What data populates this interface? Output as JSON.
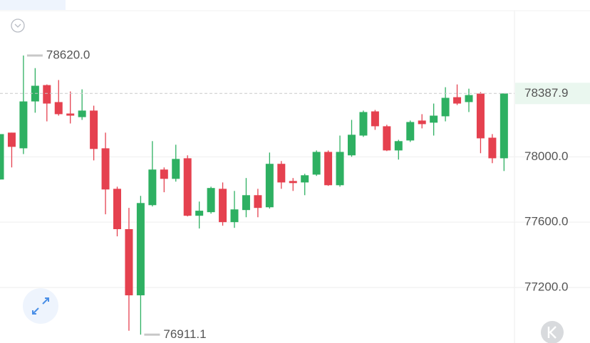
{
  "chart_data": {
    "type": "candlestick",
    "up_color": "#2eb062",
    "down_color": "#e5414f",
    "ylim": [
      76860,
      78960
    ],
    "yticks": [
      {
        "value": 77200,
        "label": "77200.0"
      },
      {
        "value": 77600,
        "label": "77600.0"
      },
      {
        "value": 78000,
        "label": "78000.0"
      }
    ],
    "grid": true,
    "last_price": 78387.9,
    "max_label": {
      "value": 78620,
      "label": "78620.0"
    },
    "min_label": {
      "value": 76911.1,
      "label": "76911.1"
    },
    "open": [
      77861,
      78148,
      78052,
      78339,
      78439,
      78335,
      78265,
      78243,
      78283,
      78052,
      77804,
      77557,
      77152,
      77704,
      77922,
      77865,
      77991,
      77639,
      77661,
      77804,
      77600,
      77674,
      77765,
      77691,
      77957,
      77852,
      77843,
      77891,
      78030,
      77826,
      78009,
      78130,
      78278,
      78187,
      78039,
      78100,
      78222,
      78209,
      78248,
      78365,
      78335,
      78387,
      78117,
      77991
    ],
    "high": [
      78139,
      78148,
      78620,
      78543,
      78443,
      78470,
      78400,
      78413,
      78313,
      78148,
      77817,
      77687,
      77761,
      78096,
      77935,
      78074,
      78009,
      77726,
      77817,
      77843,
      77791,
      77870,
      77804,
      78026,
      77974,
      77870,
      77896,
      78039,
      78039,
      78130,
      78226,
      78283,
      78287,
      78196,
      78104,
      78222,
      78261,
      78326,
      78426,
      78443,
      78417,
      78396,
      78139,
      78387.9
    ],
    "low": [
      77861,
      77935,
      78017,
      78270,
      78217,
      78252,
      78204,
      78226,
      77978,
      77648,
      77513,
      76935,
      76911.1,
      77696,
      77783,
      77848,
      77635,
      77561,
      77652,
      77578,
      77565,
      77630,
      77630,
      77683,
      77804,
      77791,
      77765,
      77883,
      77822,
      77817,
      78000,
      78122,
      78165,
      78035,
      77983,
      78091,
      78174,
      78130,
      78217,
      78317,
      78274,
      78022,
      77961,
      77913
    ],
    "close": [
      78139,
      78061,
      78339,
      78435,
      78326,
      78261,
      78252,
      78283,
      78048,
      77800,
      77557,
      77152,
      77717,
      77922,
      77865,
      77987,
      77639,
      77670,
      77809,
      77600,
      77678,
      77765,
      77687,
      77957,
      77843,
      77839,
      77887,
      78030,
      77826,
      78030,
      78135,
      78274,
      78187,
      78039,
      78096,
      78213,
      78200,
      78252,
      78361,
      78326,
      78378,
      78113,
      77991,
      78387.9
    ]
  }
}
